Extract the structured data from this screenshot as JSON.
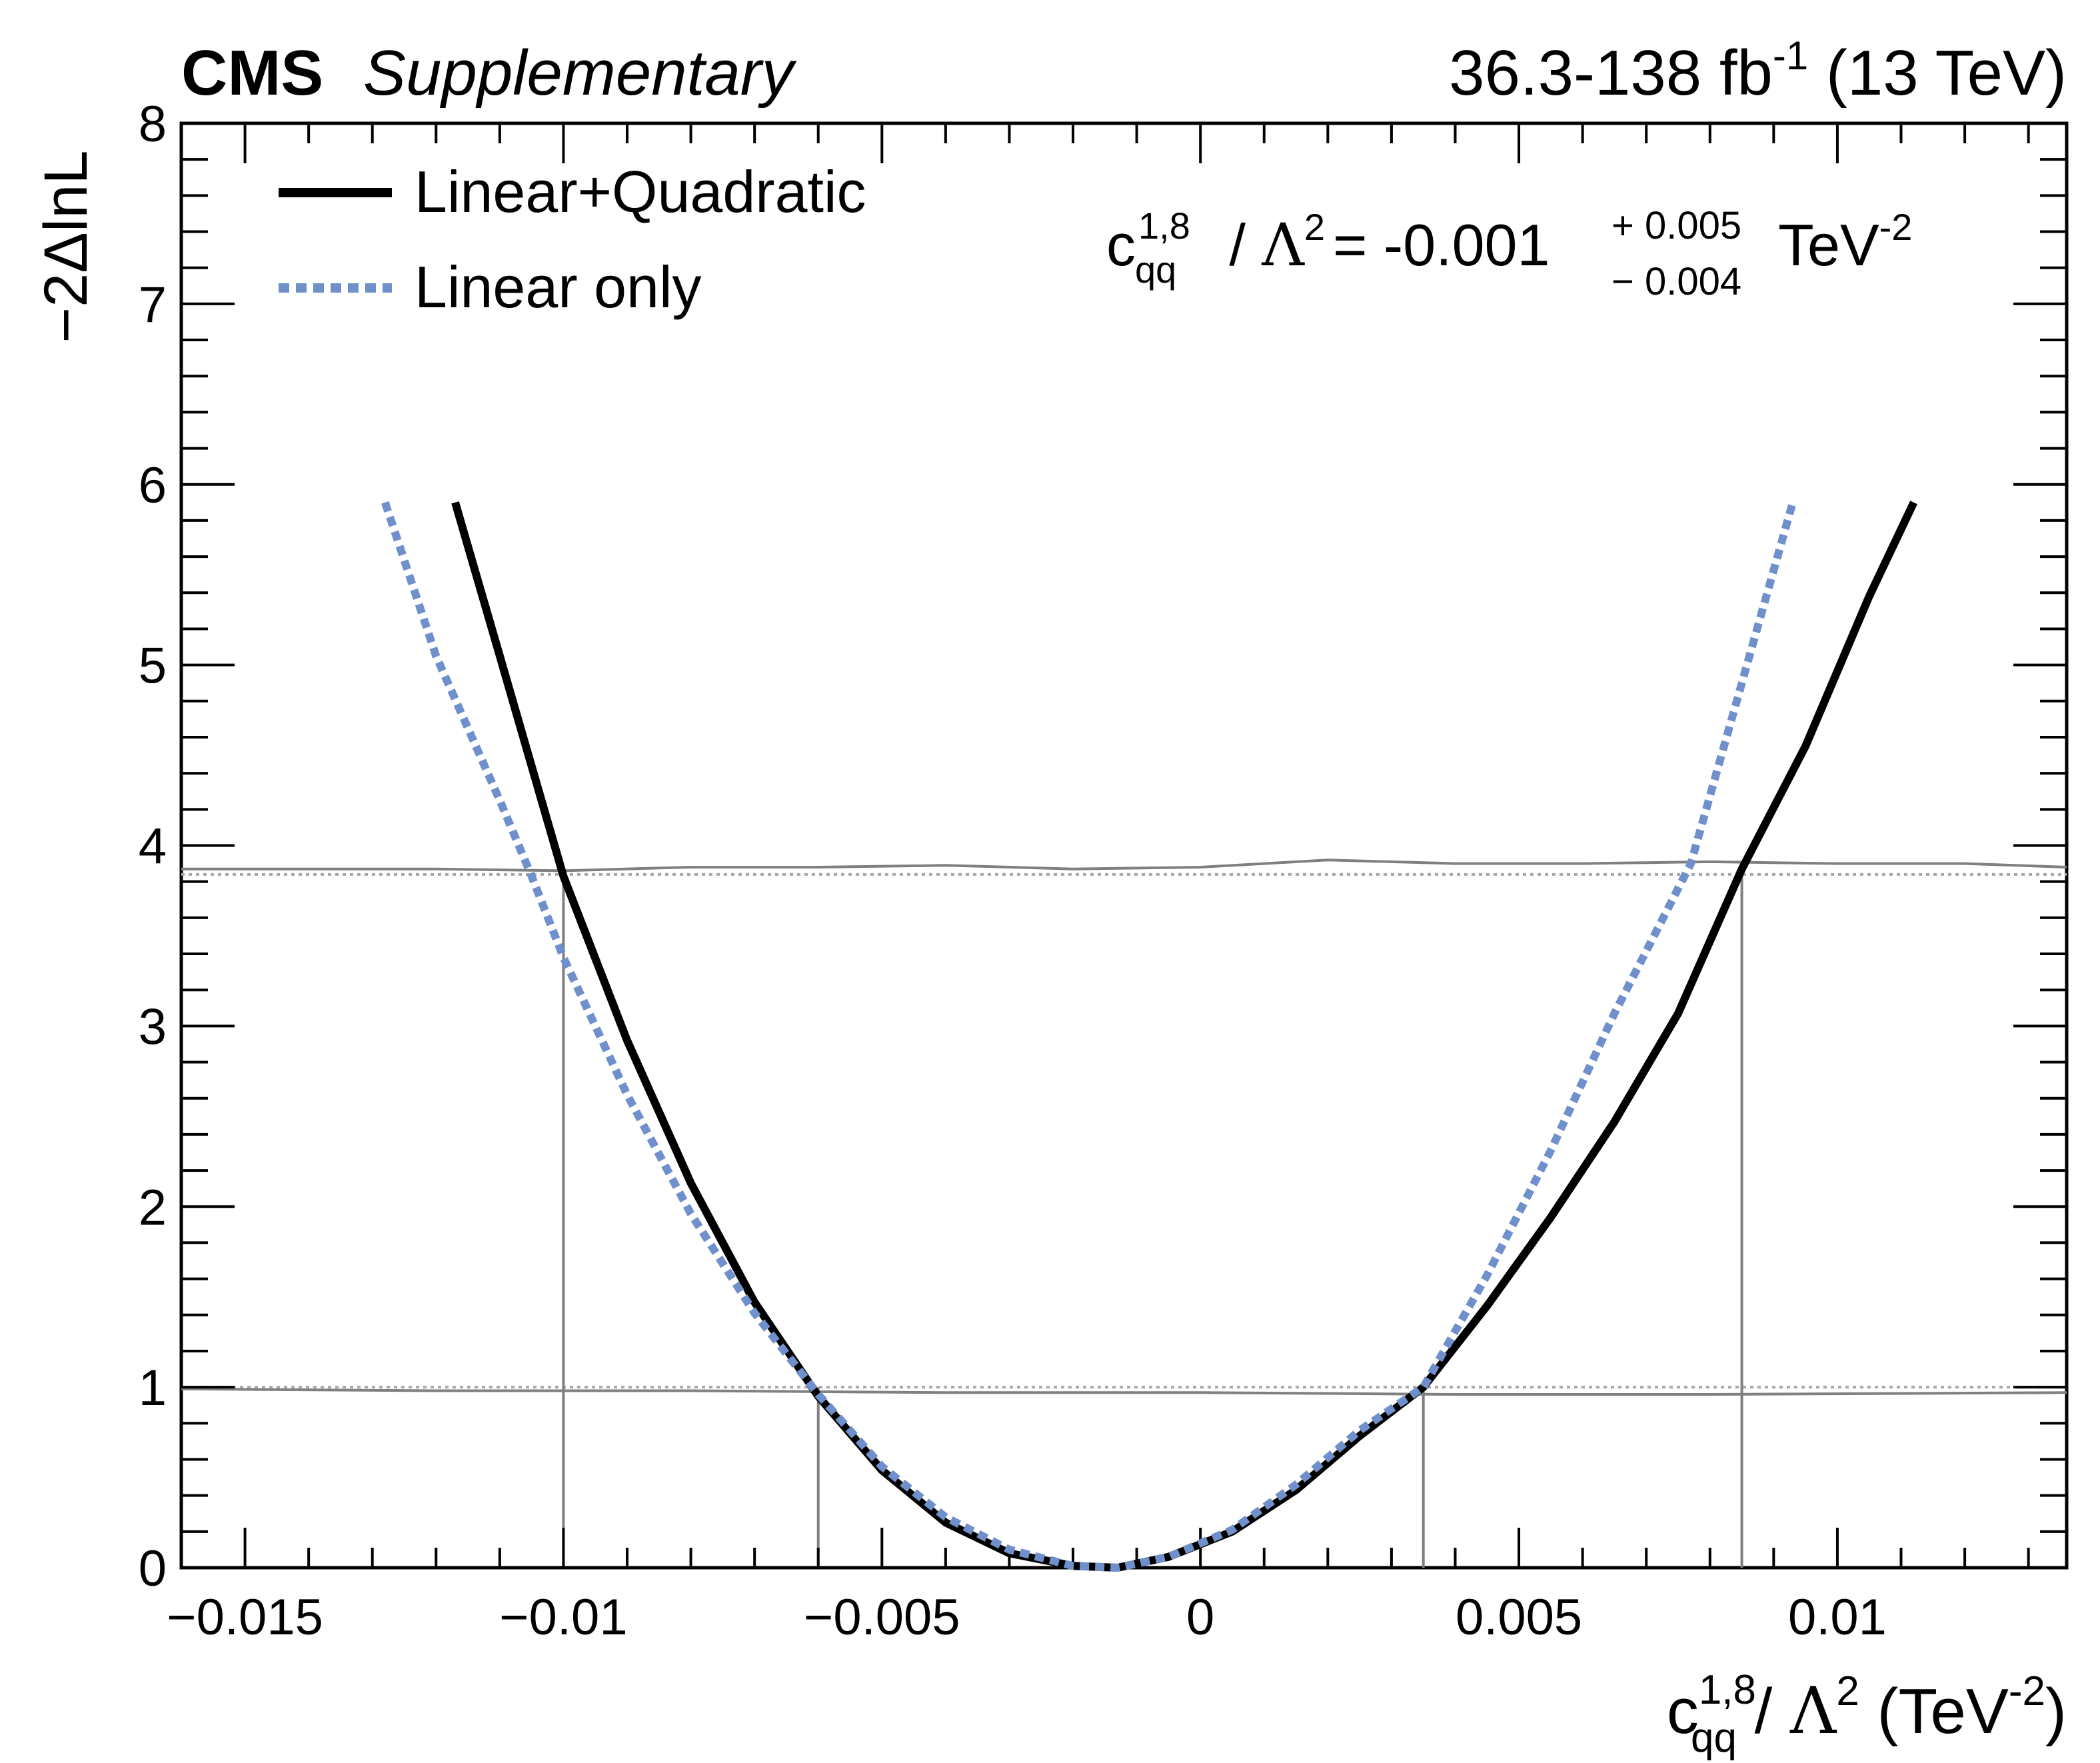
{
  "header": {
    "experiment": "CMS",
    "tag": "Supplementary",
    "lumi_prefix": "36.3-138 fb",
    "lumi_exponent": "-1",
    "energy": "(13 TeV)"
  },
  "result": {
    "coef": "c",
    "coef_sup": "1,8",
    "coef_sub": "qq",
    "lambda": "Λ",
    "lambda_exp": "2",
    "equals_value": "= -0.001",
    "err_up": "+ 0.005",
    "err_down": "− 0.004",
    "unit": "TeV",
    "unit_exp": "-2"
  },
  "colors": {
    "linquad": "#000000",
    "linonly": "#7090cc",
    "reference": "#808080",
    "reference_dotted": "#a8a8a8"
  },
  "chart_data": {
    "type": "line",
    "xlabel": {
      "coef": "c",
      "sup": "1,8",
      "sub": "qq",
      "sep": " / ",
      "lambda": "Λ",
      "lambda_exp": "2",
      "unit_open": " (TeV",
      "unit_exp": "-2",
      "unit_close": ")"
    },
    "ylabel": "−2ΔlnL",
    "xlim": [
      -0.016,
      0.0136
    ],
    "ylim": [
      0,
      8
    ],
    "x_ticks": [
      {
        "value": -0.015,
        "label": "−0.015"
      },
      {
        "value": -0.01,
        "label": "−0.01"
      },
      {
        "value": -0.005,
        "label": "−0.005"
      },
      {
        "value": 0,
        "label": "0"
      },
      {
        "value": 0.005,
        "label": "0.005"
      },
      {
        "value": 0.01,
        "label": "0.01"
      }
    ],
    "y_ticks": [
      {
        "value": 0,
        "label": "0"
      },
      {
        "value": 1,
        "label": "1"
      },
      {
        "value": 2,
        "label": "2"
      },
      {
        "value": 3,
        "label": "3"
      },
      {
        "value": 4,
        "label": "4"
      },
      {
        "value": 5,
        "label": "5"
      },
      {
        "value": 6,
        "label": "6"
      },
      {
        "value": 7,
        "label": "7"
      },
      {
        "value": 8,
        "label": "8"
      }
    ],
    "legend_position": "top-left",
    "series": [
      {
        "name": "Linear+Quadratic",
        "style": "solid",
        "x": [
          -0.0117,
          -0.011,
          -0.01,
          -0.009,
          -0.008,
          -0.007,
          -0.006,
          -0.005,
          -0.004,
          -0.003,
          -0.002,
          -0.0013,
          -0.0005,
          0.0005,
          0.0015,
          0.0025,
          0.0035,
          0.0045,
          0.0055,
          0.0065,
          0.0075,
          0.0085,
          0.0095,
          0.0105,
          0.0112
        ],
        "y": [
          5.9,
          5.05,
          3.83,
          2.92,
          2.13,
          1.47,
          0.95,
          0.54,
          0.25,
          0.08,
          0.01,
          0.0,
          0.06,
          0.2,
          0.43,
          0.73,
          1.0,
          1.45,
          1.94,
          2.47,
          3.07,
          3.87,
          4.55,
          5.38,
          5.9
        ]
      },
      {
        "name": "Linear only",
        "style": "dashed",
        "x": [
          -0.0128,
          -0.012,
          -0.011,
          -0.0105,
          -0.01,
          -0.009,
          -0.008,
          -0.007,
          -0.006,
          -0.005,
          -0.004,
          -0.003,
          -0.002,
          -0.0013,
          -0.0005,
          0.0005,
          0.0015,
          0.0025,
          0.0035,
          0.0045,
          0.0055,
          0.0065,
          0.0077,
          0.0085,
          0.0093
        ],
        "y": [
          5.9,
          5.05,
          4.25,
          3.83,
          3.38,
          2.62,
          1.96,
          1.41,
          0.96,
          0.56,
          0.28,
          0.1,
          0.01,
          0.0,
          0.06,
          0.21,
          0.46,
          0.76,
          1.0,
          1.62,
          2.31,
          3.07,
          3.9,
          4.9,
          5.9
        ]
      }
    ],
    "reference_lines": [
      {
        "kind": "threshold-profile",
        "x": [
          -0.016,
          -0.014,
          -0.012,
          -0.01,
          -0.008,
          -0.006,
          -0.004,
          -0.002,
          0.0,
          0.002,
          0.004,
          0.006,
          0.008,
          0.01,
          0.012,
          0.0136
        ],
        "y": [
          3.87,
          3.87,
          3.87,
          3.86,
          3.88,
          3.88,
          3.89,
          3.87,
          3.88,
          3.92,
          3.9,
          3.9,
          3.91,
          3.9,
          3.9,
          3.88
        ]
      },
      {
        "kind": "threshold-profile",
        "x": [
          -0.016,
          -0.012,
          -0.008,
          -0.004,
          0.0,
          0.004,
          0.008,
          0.0136
        ],
        "y": [
          0.99,
          0.98,
          0.98,
          0.97,
          0.97,
          0.96,
          0.96,
          0.97
        ]
      }
    ],
    "threshold_levels": [
      1.0,
      3.84
    ],
    "interval_markers": [
      {
        "x": -0.01,
        "y": 3.84
      },
      {
        "x": -0.006,
        "y": 1.0
      },
      {
        "x": 0.0035,
        "y": 1.0
      },
      {
        "x": 0.0085,
        "y": 3.84
      }
    ]
  }
}
